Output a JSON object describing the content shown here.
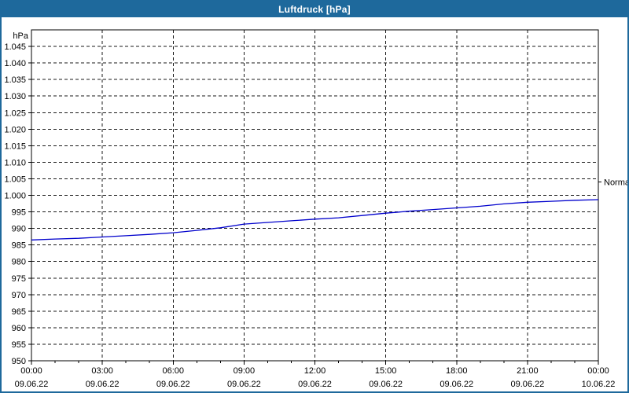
{
  "window": {
    "title": "Luftdruck [hPa]"
  },
  "colors": {
    "accent": "#1e699c",
    "titlebar_text": "#ffffff",
    "plot_background": "#ffffff",
    "grid": "#1a1a1a",
    "axis": "#000000",
    "line": "#0000cc"
  },
  "chart_data": {
    "type": "line",
    "title": "Luftdruck [hPa]",
    "ylabel": "hPa",
    "xlabel": "",
    "ylim": [
      950,
      1050
    ],
    "xlim": [
      0,
      24
    ],
    "grid": true,
    "minor_tick_hours": 1,
    "yticks": [
      {
        "value": 1045,
        "label": "1.045"
      },
      {
        "value": 1040,
        "label": "1.040"
      },
      {
        "value": 1035,
        "label": "1.035"
      },
      {
        "value": 1030,
        "label": "1.030"
      },
      {
        "value": 1025,
        "label": "1.025"
      },
      {
        "value": 1020,
        "label": "1.020"
      },
      {
        "value": 1015,
        "label": "1.015"
      },
      {
        "value": 1010,
        "label": "1.010"
      },
      {
        "value": 1005,
        "label": "1.005"
      },
      {
        "value": 1000,
        "label": "1.000"
      },
      {
        "value": 995,
        "label": "995"
      },
      {
        "value": 990,
        "label": "990"
      },
      {
        "value": 985,
        "label": "985"
      },
      {
        "value": 980,
        "label": "980"
      },
      {
        "value": 975,
        "label": "975"
      },
      {
        "value": 970,
        "label": "970"
      },
      {
        "value": 965,
        "label": "965"
      },
      {
        "value": 960,
        "label": "960"
      },
      {
        "value": 955,
        "label": "955"
      },
      {
        "value": 950,
        "label": "950"
      }
    ],
    "xticks": [
      {
        "hour": 0,
        "time": "00:00",
        "date": "09.06.22"
      },
      {
        "hour": 3,
        "time": "03:00",
        "date": "09.06.22"
      },
      {
        "hour": 6,
        "time": "06:00",
        "date": "09.06.22"
      },
      {
        "hour": 9,
        "time": "09:00",
        "date": "09.06.22"
      },
      {
        "hour": 12,
        "time": "12:00",
        "date": "09.06.22"
      },
      {
        "hour": 15,
        "time": "15:00",
        "date": "09.06.22"
      },
      {
        "hour": 18,
        "time": "18:00",
        "date": "09.06.22"
      },
      {
        "hour": 21,
        "time": "21:00",
        "date": "09.06.22"
      },
      {
        "hour": 24,
        "time": "00:00",
        "date": "10.06.22"
      }
    ],
    "normal_marker": {
      "value": 1004,
      "label": "Normal"
    },
    "series": [
      {
        "name": "Luftdruck",
        "color": "#0000cc",
        "points": [
          [
            0,
            986.5
          ],
          [
            1,
            986.8
          ],
          [
            2,
            987.0
          ],
          [
            3,
            987.4
          ],
          [
            4,
            987.8
          ],
          [
            5,
            988.2
          ],
          [
            6,
            988.7
          ],
          [
            7,
            989.4
          ],
          [
            8,
            990.2
          ],
          [
            9,
            991.3
          ],
          [
            10,
            991.8
          ],
          [
            11,
            992.3
          ],
          [
            12,
            992.8
          ],
          [
            13,
            993.2
          ],
          [
            14,
            993.9
          ],
          [
            15,
            994.6
          ],
          [
            16,
            995.2
          ],
          [
            17,
            995.7
          ],
          [
            18,
            996.2
          ],
          [
            19,
            996.7
          ],
          [
            20,
            997.4
          ],
          [
            21,
            997.9
          ],
          [
            22,
            998.2
          ],
          [
            23,
            998.5
          ],
          [
            24,
            998.7
          ]
        ]
      }
    ]
  }
}
